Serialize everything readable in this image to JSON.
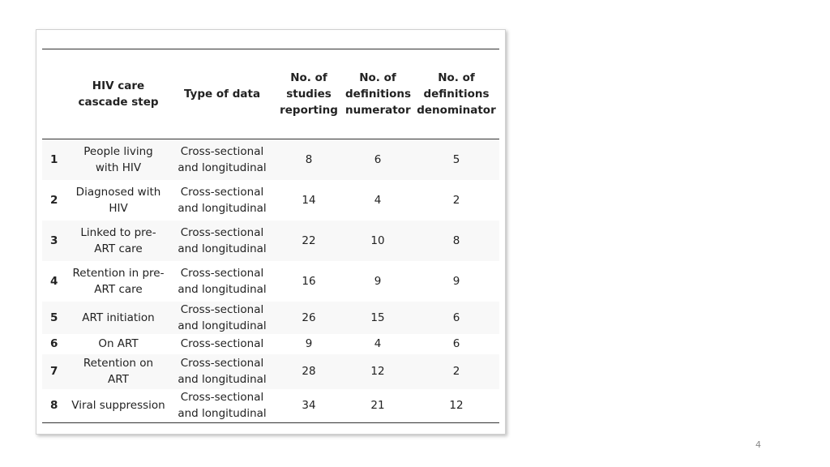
{
  "table": {
    "header": [
      "",
      "HIV care cascade step",
      "Type of data",
      "No. of studies reporting",
      "No. of definitions numerator",
      "No. of definitions denominator"
    ],
    "rows": [
      [
        1,
        "People living with HIV",
        "Cross-sectional and longitudinal",
        8,
        6,
        5
      ],
      [
        2,
        "Diagnosed with HIV",
        "Cross-sectional and longitudinal",
        14,
        4,
        2
      ],
      [
        3,
        "Linked to pre-ART care",
        "Cross-sectional and longitudinal",
        22,
        10,
        8
      ],
      [
        4,
        "Retention in pre-ART care",
        "Cross-sectional and longitudinal",
        16,
        9,
        9
      ],
      [
        5,
        "ART initiation",
        "Cross-sectional and longitudinal",
        26,
        15,
        6
      ],
      [
        6,
        "On ART",
        "Cross-sectional",
        9,
        4,
        6
      ],
      [
        7,
        "Retention on ART",
        "Cross-sectional and longitudinal",
        28,
        12,
        2
      ],
      [
        8,
        "Viral suppression",
        "Cross-sectional and longitudinal",
        34,
        21,
        12
      ]
    ]
  },
  "page_number": 4
}
